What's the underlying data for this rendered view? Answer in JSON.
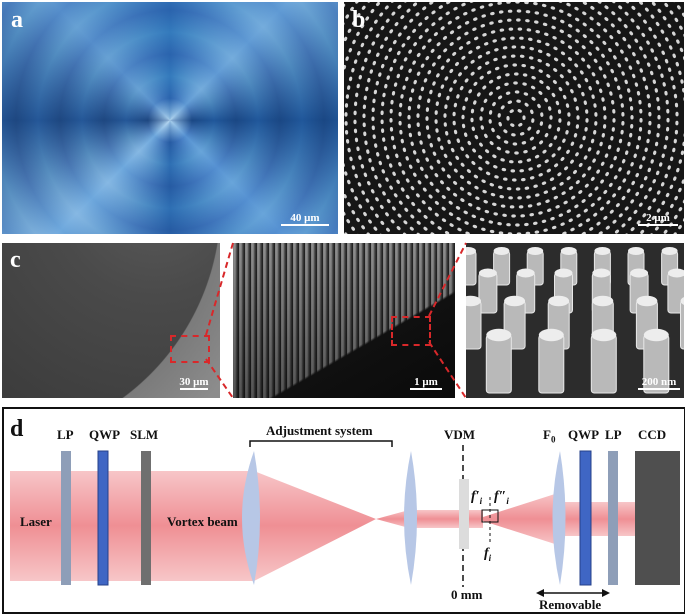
{
  "panels": {
    "a": {
      "label": "a",
      "scale": "40 μm"
    },
    "b": {
      "label": "b",
      "scale": "2 μm"
    },
    "c": {
      "label": "c",
      "scales": [
        "30 μm",
        "1 μm",
        "200 nm"
      ]
    },
    "d": {
      "label": "d",
      "components": {
        "lp1": "LP",
        "qwp1": "QWP",
        "slm": "SLM",
        "adjustment": "Adjustment system",
        "vdm": "VDM",
        "f0_base": "F",
        "f0_sub": "0",
        "qwp2": "QWP",
        "lp2": "LP",
        "ccd": "CCD"
      },
      "labels": {
        "laser": "Laser",
        "vortex": "Vortex beam",
        "zero": "0 mm",
        "removable": "Removable",
        "f_prime": "f′",
        "f_dprime": "f″",
        "f_i": "f",
        "sub_i": "i"
      }
    }
  },
  "colors": {
    "beam": "#f3a6a9",
    "lens": "#b7c7e6",
    "qwp": "#3f66c4",
    "lp": "#8e9eb8",
    "slm": "#6f6f6f",
    "ccd": "#4f4f4f",
    "dash": "#d8282a"
  }
}
